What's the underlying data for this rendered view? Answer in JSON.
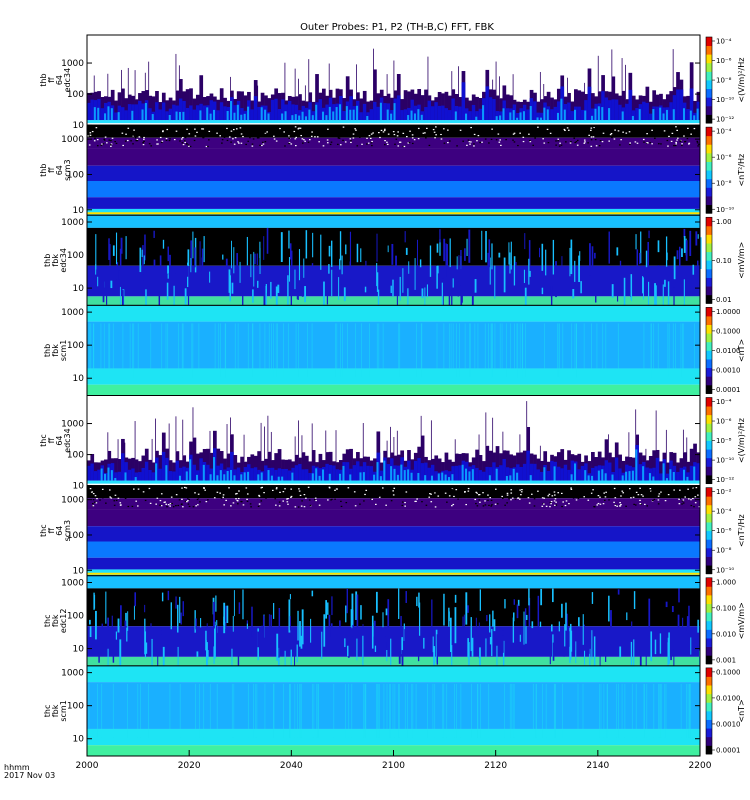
{
  "chart_data": {
    "type": "heatmap",
    "title": "Outer Probes: P1, P2 (TH-B,C) FFT, FBK",
    "footer": {
      "time_label": "hhmm",
      "date_label": "2017 Nov 03"
    },
    "x_ticks": [
      "2000",
      "2020",
      "2040",
      "2100",
      "2120",
      "2140",
      "2200"
    ],
    "panels": [
      {
        "id": "thb-ff-edc34",
        "ylabel": [
          "thb",
          "ff",
          "64",
          "edc34"
        ],
        "yticks": [
          "10",
          "100",
          "1000"
        ],
        "ylim": [
          10,
          8000
        ],
        "color_label": "<(V/m)²/Hz",
        "cbar_ticks": [
          "10⁻¹²",
          "10⁻¹⁰",
          "10⁻⁸",
          "10⁻⁶",
          "10⁻⁴"
        ],
        "style": "spiky",
        "colors": [
          "#2b0066",
          "#1010d0",
          "#0a9aff",
          "#26e0ff"
        ]
      },
      {
        "id": "thb-ff-scm3",
        "ylabel": [
          "thb",
          "ff",
          "64",
          "scm3"
        ],
        "yticks": [
          "10",
          "100",
          "1000"
        ],
        "ylim": [
          7,
          2500
        ],
        "color_label": "<nT²/Hz",
        "cbar_ticks": [
          "10⁻¹⁰",
          "10⁻⁸",
          "10⁻⁶",
          "10⁻⁴"
        ],
        "style": "bands",
        "colors": [
          "#000000",
          "#ffffff",
          "#3d0080",
          "#1515c8",
          "#0a78ff",
          "#1ee0ff",
          "#ffe000"
        ]
      },
      {
        "id": "thb-fbk-edc34",
        "ylabel": [
          "thb",
          "fbk",
          "edc34"
        ],
        "yticks": [
          "10",
          "100",
          "1000"
        ],
        "ylim": [
          3,
          1600
        ],
        "color_label": "<mV/m>",
        "cbar_ticks": [
          "0.01",
          "0.10",
          "1.00"
        ],
        "style": "fbk",
        "colors": [
          "#000000",
          "#1818c8",
          "#18c0ff",
          "#40e0a0"
        ]
      },
      {
        "id": "thb-fbk-scm1",
        "ylabel": [
          "thb",
          "fbk",
          "scm1"
        ],
        "yticks": [
          "10",
          "100",
          "1000"
        ],
        "ylim": [
          3,
          1600
        ],
        "color_label": "<nT>",
        "cbar_ticks": [
          "0.0001",
          "0.0010",
          "0.0100",
          "0.1000",
          "1.0000"
        ],
        "style": "smooth",
        "colors": [
          "#1ab0ff",
          "#1ee4f4",
          "#40f0a0"
        ]
      },
      {
        "id": "thc-ff-edc34",
        "ylabel": [
          "thc",
          "ff",
          "64",
          "edc34"
        ],
        "yticks": [
          "10",
          "100",
          "1000"
        ],
        "ylim": [
          10,
          8000
        ],
        "color_label": "<(V/m)²/Hz",
        "cbar_ticks": [
          "10⁻¹²",
          "10⁻¹⁰",
          "10⁻⁸",
          "10⁻⁶",
          "10⁻⁴"
        ],
        "style": "spiky",
        "colors": [
          "#2b0066",
          "#1010d0",
          "#0a9aff",
          "#26e0ff"
        ]
      },
      {
        "id": "thc-ff-scm3",
        "ylabel": [
          "thc",
          "ff",
          "64",
          "scm3"
        ],
        "yticks": [
          "10",
          "100",
          "1000"
        ],
        "ylim": [
          7,
          2500
        ],
        "color_label": "<nT²/Hz",
        "cbar_ticks": [
          "10⁻¹⁰",
          "10⁻⁸",
          "10⁻⁶",
          "10⁻⁴",
          "10⁻²"
        ],
        "style": "bands",
        "colors": [
          "#000000",
          "#ffffff",
          "#3d0080",
          "#1515c8",
          "#0a78ff",
          "#1ee0ff",
          "#ffe000"
        ]
      },
      {
        "id": "thc-fbk-edc12",
        "ylabel": [
          "thc",
          "fbk",
          "edc12"
        ],
        "yticks": [
          "10",
          "100",
          "1000"
        ],
        "ylim": [
          3,
          1600
        ],
        "color_label": "<mV/m>",
        "cbar_ticks": [
          "0.001",
          "0.010",
          "0.100",
          "1.000"
        ],
        "style": "fbk",
        "colors": [
          "#000000",
          "#1818c8",
          "#18c0ff",
          "#40e0a0"
        ]
      },
      {
        "id": "thc-fbk-scm1",
        "ylabel": [
          "thc",
          "fbk",
          "scm1"
        ],
        "yticks": [
          "10",
          "100",
          "1000"
        ],
        "ylim": [
          3,
          1600
        ],
        "color_label": "<nT>",
        "cbar_ticks": [
          "0.0001",
          "0.0010",
          "0.0100",
          "0.1000"
        ],
        "style": "smooth",
        "colors": [
          "#1ab0ff",
          "#1ee4f4",
          "#40f0a0"
        ]
      }
    ],
    "colormap": [
      "#000000",
      "#30007a",
      "#1a1ad8",
      "#0a6cff",
      "#10c8ff",
      "#40f0c0",
      "#a0f040",
      "#ffe000",
      "#ff7000",
      "#e00000"
    ]
  }
}
